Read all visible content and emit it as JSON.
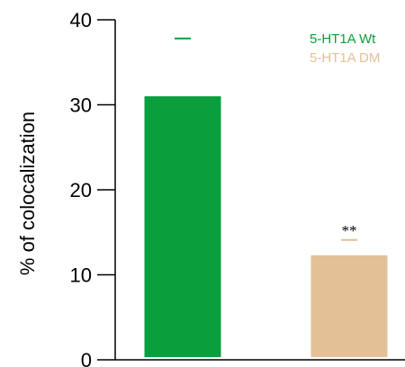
{
  "chart_data": {
    "type": "bar",
    "title": "",
    "xlabel": "",
    "ylabel": "% of colocalization",
    "ylim": [
      0,
      40
    ],
    "yticks": [
      0,
      10,
      20,
      30,
      40
    ],
    "grid": false,
    "legend_position": "top-right",
    "categories": [
      "",
      ""
    ],
    "series": [
      {
        "name": "5-HT1A Wt",
        "values": [
          31.0,
          null
        ],
        "error": [
          6.8,
          null
        ],
        "color": "#0a9e3c"
      },
      {
        "name": "5-HT1A DM",
        "values": [
          null,
          12.3
        ],
        "error": [
          null,
          1.8
        ],
        "color": "#e4c097"
      }
    ],
    "annotations": [
      {
        "text": "**",
        "series": 1,
        "category": 1,
        "color": "#000000"
      }
    ]
  }
}
